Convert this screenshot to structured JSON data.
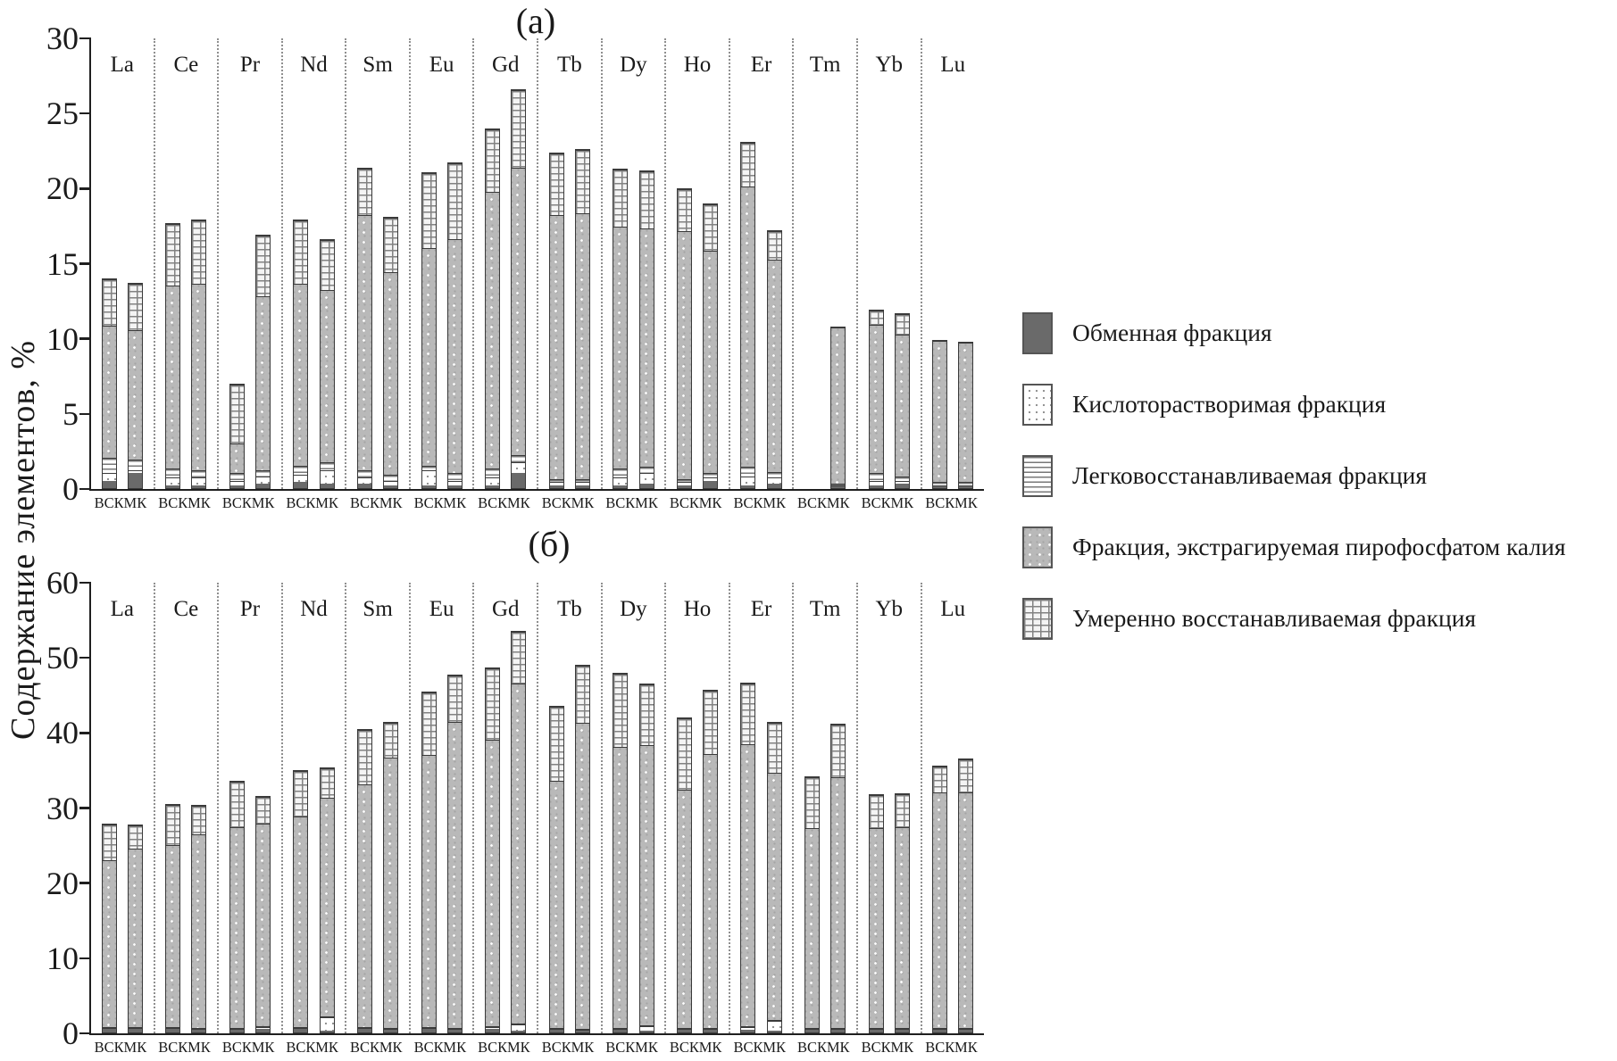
{
  "figure": {
    "y_axis_label": "Содержание элементов, %"
  },
  "legend": {
    "items": [
      {
        "pattern": "exchangeable",
        "label": "Обменная фракция"
      },
      {
        "pattern": "acid_soluble",
        "label": "Кислоторастворимая фракция"
      },
      {
        "pattern": "easily_reducible",
        "label": "Легковосстанавливаемая фракция"
      },
      {
        "pattern": "pyrophosphate",
        "label": "Фракция, экстрагируемая пирофосфатом калия"
      },
      {
        "pattern": "moderately_reducible",
        "label": "Умеренно восстанавливаемая фракция"
      }
    ]
  },
  "chart_data": [
    {
      "type": "bar",
      "stacked": true,
      "panel_label": "(а)",
      "ylabel": "Содержание элементов, %",
      "ylim": [
        0,
        30
      ],
      "yticks": [
        0,
        5,
        10,
        15,
        20,
        25,
        30
      ],
      "grid": false,
      "legend_position": "right",
      "bar_sublabels": [
        "ВСК",
        "МК"
      ],
      "series_order": [
        "exchangeable",
        "acid_soluble",
        "easily_reducible",
        "pyrophosphate",
        "moderately_reducible"
      ],
      "categories": [
        "La",
        "Ce",
        "Pr",
        "Nd",
        "Sm",
        "Eu",
        "Gd",
        "Tb",
        "Dy",
        "Ho",
        "Er",
        "Tm",
        "Yb",
        "Lu"
      ],
      "groups": [
        {
          "element": "La",
          "bars": [
            {
              "label": "ВСК",
              "segments": [
                0.5,
                0.5,
                1.0,
                8.8,
                3.1
              ]
            },
            {
              "label": "МК",
              "segments": [
                1.0,
                0.2,
                0.7,
                8.6,
                3.1
              ]
            }
          ]
        },
        {
          "element": "Ce",
          "bars": [
            {
              "label": "ВСК",
              "segments": [
                0.2,
                0.5,
                0.6,
                12.2,
                4.1
              ]
            },
            {
              "label": "МК",
              "segments": [
                0.2,
                0.5,
                0.5,
                12.4,
                4.2
              ]
            }
          ]
        },
        {
          "element": "Pr",
          "bars": [
            {
              "label": "ВСК",
              "segments": [
                0.2,
                0.3,
                0.5,
                2.0,
                3.9
              ]
            },
            {
              "label": "МК",
              "segments": [
                0.3,
                0.5,
                0.4,
                11.6,
                4.0
              ]
            }
          ]
        },
        {
          "element": "Nd",
          "bars": [
            {
              "label": "ВСК",
              "segments": [
                0.4,
                0.5,
                0.6,
                12.1,
                4.2
              ]
            },
            {
              "label": "МК",
              "segments": [
                0.3,
                0.9,
                0.5,
                11.5,
                3.3
              ]
            }
          ]
        },
        {
          "element": "Sm",
          "bars": [
            {
              "label": "ВСК",
              "segments": [
                0.3,
                0.4,
                0.5,
                17.0,
                3.1
              ]
            },
            {
              "label": "МК",
              "segments": [
                0.2,
                0.3,
                0.4,
                13.5,
                3.6
              ]
            }
          ]
        },
        {
          "element": "Eu",
          "bars": [
            {
              "label": "ВСК",
              "segments": [
                0.2,
                1.0,
                0.3,
                14.5,
                5.0
              ]
            },
            {
              "label": "МК",
              "segments": [
                0.2,
                0.3,
                0.5,
                15.6,
                5.0
              ]
            }
          ]
        },
        {
          "element": "Gd",
          "bars": [
            {
              "label": "ВСК",
              "segments": [
                0.2,
                0.5,
                0.6,
                18.4,
                4.2
              ]
            },
            {
              "label": "МК",
              "segments": [
                1.0,
                0.7,
                0.5,
                19.1,
                5.2
              ]
            }
          ]
        },
        {
          "element": "Tb",
          "bars": [
            {
              "label": "ВСК",
              "segments": [
                0.2,
                0.2,
                0.2,
                17.6,
                4.1
              ]
            },
            {
              "label": "МК",
              "segments": [
                0.2,
                0.2,
                0.2,
                17.7,
                4.2
              ]
            }
          ]
        },
        {
          "element": "Dy",
          "bars": [
            {
              "label": "ВСК",
              "segments": [
                0.2,
                0.5,
                0.6,
                16.1,
                3.8
              ]
            },
            {
              "label": "МК",
              "segments": [
                0.3,
                0.7,
                0.4,
                15.9,
                3.8
              ]
            }
          ]
        },
        {
          "element": "Ho",
          "bars": [
            {
              "label": "ВСК",
              "segments": [
                0.2,
                0.2,
                0.2,
                16.5,
                2.8
              ]
            },
            {
              "label": "МК",
              "segments": [
                0.5,
                0.2,
                0.3,
                14.8,
                3.1
              ]
            }
          ]
        },
        {
          "element": "Er",
          "bars": [
            {
              "label": "ВСК",
              "segments": [
                0.2,
                0.6,
                0.6,
                18.7,
                2.9
              ]
            },
            {
              "label": "МК",
              "segments": [
                0.3,
                0.4,
                0.4,
                14.1,
                1.9
              ]
            }
          ]
        },
        {
          "element": "Tm",
          "bars": [
            {
              "label": "ВСК",
              "segments": null
            },
            {
              "label": "МК",
              "segments": [
                0.1,
                0.1,
                0.1,
                10.4,
                0
              ]
            }
          ]
        },
        {
          "element": "Yb",
          "bars": [
            {
              "label": "ВСК",
              "segments": [
                0.2,
                0.3,
                0.5,
                9.9,
                0.9
              ]
            },
            {
              "label": "МК",
              "segments": [
                0.3,
                0.2,
                0.3,
                9.4,
                1.4
              ]
            }
          ]
        },
        {
          "element": "Lu",
          "bars": [
            {
              "label": "ВСК",
              "segments": [
                0.1,
                0.1,
                0.2,
                9.4,
                0
              ]
            },
            {
              "label": "МК",
              "segments": [
                0.1,
                0.1,
                0.2,
                9.3,
                0
              ]
            }
          ]
        }
      ]
    },
    {
      "type": "bar",
      "stacked": true,
      "panel_label": "(б)",
      "ylabel": "Содержание элементов, %",
      "ylim": [
        0,
        60
      ],
      "yticks": [
        0,
        10,
        20,
        30,
        40,
        50,
        60
      ],
      "grid": false,
      "legend_position": "right",
      "bar_sublabels": [
        "ВСК",
        "МК"
      ],
      "series_order": [
        "exchangeable",
        "acid_soluble",
        "easily_reducible",
        "pyrophosphate",
        "moderately_reducible"
      ],
      "categories": [
        "La",
        "Ce",
        "Pr",
        "Nd",
        "Sm",
        "Eu",
        "Gd",
        "Tb",
        "Dy",
        "Ho",
        "Er",
        "Tm",
        "Yb",
        "Lu"
      ],
      "groups": [
        {
          "element": "La",
          "bars": [
            {
              "label": "ВСК",
              "segments": [
                0.5,
                0.1,
                0.1,
                22.2,
                4.8
              ]
            },
            {
              "label": "МК",
              "segments": [
                0.5,
                0.1,
                0.1,
                23.7,
                3.1
              ]
            }
          ]
        },
        {
          "element": "Ce",
          "bars": [
            {
              "label": "ВСК",
              "segments": [
                0.5,
                0.1,
                0.1,
                24.2,
                5.4
              ]
            },
            {
              "label": "МК",
              "segments": [
                0.4,
                0.1,
                0.1,
                25.7,
                3.8
              ]
            }
          ]
        },
        {
          "element": "Pr",
          "bars": [
            {
              "label": "ВСК",
              "segments": [
                0.4,
                0.1,
                0.1,
                26.7,
                6.0
              ]
            },
            {
              "label": "МК",
              "segments": [
                0.5,
                0.2,
                0.1,
                27.0,
                3.6
              ]
            }
          ]
        },
        {
          "element": "Nd",
          "bars": [
            {
              "label": "ВСК",
              "segments": [
                0.5,
                0.1,
                0.1,
                28.0,
                6.1
              ]
            },
            {
              "label": "МК",
              "segments": [
                0.2,
                1.8,
                0.1,
                29.1,
                4.0
              ]
            }
          ]
        },
        {
          "element": "Sm",
          "bars": [
            {
              "label": "ВСК",
              "segments": [
                0.5,
                0.1,
                0.1,
                32.3,
                7.3
              ]
            },
            {
              "label": "МК",
              "segments": [
                0.3,
                0.1,
                0.1,
                36.0,
                4.7
              ]
            }
          ]
        },
        {
          "element": "Eu",
          "bars": [
            {
              "label": "ВСК",
              "segments": [
                0.5,
                0.1,
                0.1,
                36.2,
                8.3
              ]
            },
            {
              "label": "МК",
              "segments": [
                0.4,
                0.1,
                0.1,
                40.7,
                6.2
              ]
            }
          ]
        },
        {
          "element": "Gd",
          "bars": [
            {
              "label": "ВСК",
              "segments": [
                0.5,
                0.2,
                0.1,
                38.1,
                9.6
              ]
            },
            {
              "label": "МК",
              "segments": [
                0.2,
                0.9,
                0.1,
                45.2,
                6.9
              ]
            }
          ]
        },
        {
          "element": "Tb",
          "bars": [
            {
              "label": "ВСК",
              "segments": [
                0.3,
                0.1,
                0.1,
                33.0,
                9.8
              ]
            },
            {
              "label": "МК",
              "segments": [
                0.2,
                0.1,
                0.1,
                40.8,
                7.6
              ]
            }
          ]
        },
        {
          "element": "Dy",
          "bars": [
            {
              "label": "ВСК",
              "segments": [
                0.4,
                0.1,
                0.1,
                37.4,
                9.7
              ]
            },
            {
              "label": "МК",
              "segments": [
                0.2,
                0.6,
                0.1,
                37.3,
                8.1
              ]
            }
          ]
        },
        {
          "element": "Ho",
          "bars": [
            {
              "label": "ВСК",
              "segments": [
                0.3,
                0.1,
                0.1,
                31.8,
                9.5
              ]
            },
            {
              "label": "МК",
              "segments": [
                0.3,
                0.1,
                0.1,
                36.5,
                8.5
              ]
            }
          ]
        },
        {
          "element": "Er",
          "bars": [
            {
              "label": "ВСК",
              "segments": [
                0.4,
                0.3,
                0.1,
                37.6,
                8.1
              ]
            },
            {
              "label": "МК",
              "segments": [
                0.2,
                1.3,
                0.1,
                32.9,
                6.7
              ]
            }
          ]
        },
        {
          "element": "Tm",
          "bars": [
            {
              "label": "ВСК",
              "segments": [
                0.3,
                0.1,
                0.1,
                26.7,
                6.8
              ]
            },
            {
              "label": "МК",
              "segments": [
                0.4,
                0.1,
                0.1,
                33.4,
                6.9
              ]
            }
          ]
        },
        {
          "element": "Yb",
          "bars": [
            {
              "label": "ВСК",
              "segments": [
                0.3,
                0.1,
                0.1,
                26.7,
                4.4
              ]
            },
            {
              "label": "МК",
              "segments": [
                0.3,
                0.1,
                0.1,
                26.8,
                4.4
              ]
            }
          ]
        },
        {
          "element": "Lu",
          "bars": [
            {
              "label": "ВСК",
              "segments": [
                0.3,
                0.1,
                0.1,
                31.4,
                3.5
              ]
            },
            {
              "label": "МК",
              "segments": [
                0.4,
                0.1,
                0.1,
                31.3,
                4.4
              ]
            }
          ]
        }
      ]
    }
  ]
}
